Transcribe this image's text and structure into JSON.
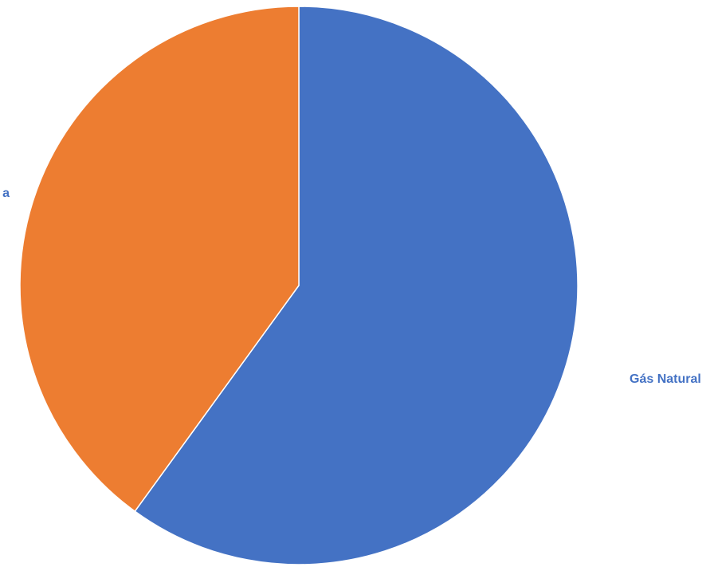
{
  "chart_data": {
    "type": "pie",
    "categories": [
      "Gás Natural",
      "a"
    ],
    "values": [
      60,
      40
    ],
    "colors": [
      "#4472c4",
      "#ed7d31"
    ],
    "label_color": "#4472c4"
  }
}
